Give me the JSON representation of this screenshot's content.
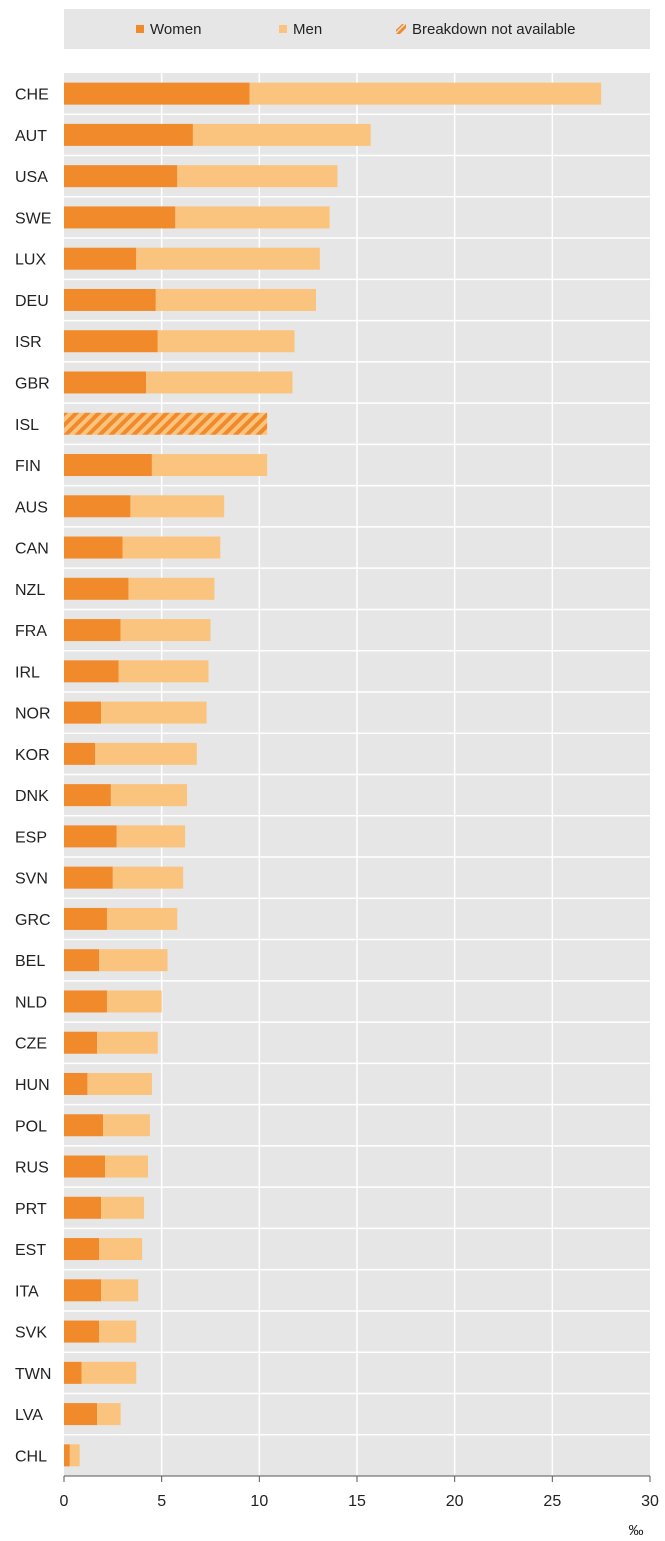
{
  "chart_data": {
    "type": "bar",
    "orientation": "horizontal",
    "stacked": true,
    "categories": [
      "CHE",
      "AUT",
      "USA",
      "SWE",
      "LUX",
      "DEU",
      "ISR",
      "GBR",
      "ISL",
      "FIN",
      "AUS",
      "CAN",
      "NZL",
      "FRA",
      "IRL",
      "NOR",
      "KOR",
      "DNK",
      "ESP",
      "SVN",
      "GRC",
      "BEL",
      "NLD",
      "CZE",
      "HUN",
      "POL",
      "RUS",
      "PRT",
      "EST",
      "ITA",
      "SVK",
      "TWN",
      "LVA",
      "CHL"
    ],
    "series": [
      {
        "name": "Women",
        "color": "#f18a2b",
        "values": [
          9.5,
          6.6,
          5.8,
          5.7,
          3.7,
          4.7,
          4.8,
          4.2,
          null,
          4.5,
          3.4,
          3.0,
          3.3,
          2.9,
          2.8,
          1.9,
          1.6,
          2.4,
          2.7,
          2.5,
          2.2,
          1.8,
          2.2,
          1.7,
          1.2,
          2.0,
          2.1,
          1.9,
          1.8,
          1.9,
          1.8,
          0.9,
          1.7,
          0.3
        ]
      },
      {
        "name": "Men",
        "color": "#fbc47e",
        "values": [
          18.0,
          9.1,
          8.2,
          7.9,
          9.4,
          8.2,
          7.0,
          7.5,
          null,
          5.9,
          4.8,
          5.0,
          4.4,
          4.6,
          4.6,
          5.4,
          5.2,
          3.9,
          3.5,
          3.6,
          3.6,
          3.5,
          2.8,
          3.1,
          3.3,
          2.4,
          2.2,
          2.2,
          2.2,
          1.9,
          1.9,
          2.8,
          1.2,
          0.5
        ]
      },
      {
        "name": "Breakdown not available",
        "color": "#f18a2b",
        "pattern": "hatched",
        "values": [
          null,
          null,
          null,
          null,
          null,
          null,
          null,
          null,
          10.4,
          null,
          null,
          null,
          null,
          null,
          null,
          null,
          null,
          null,
          null,
          null,
          null,
          null,
          null,
          null,
          null,
          null,
          null,
          null,
          null,
          null,
          null,
          null,
          null,
          null
        ]
      }
    ],
    "xlim": [
      0,
      30
    ],
    "xticks": [
      "0",
      "5",
      "10",
      "15",
      "20",
      "25",
      "30"
    ],
    "xunit": "‰",
    "grid": true,
    "legend_position": "top"
  },
  "legend": {
    "women": "Women",
    "men": "Men",
    "na": "Breakdown not available"
  },
  "colors": {
    "women": "#f18a2b",
    "men": "#fbc47e",
    "plot_bg": "#e6e6e6",
    "grid": "#ffffff"
  }
}
